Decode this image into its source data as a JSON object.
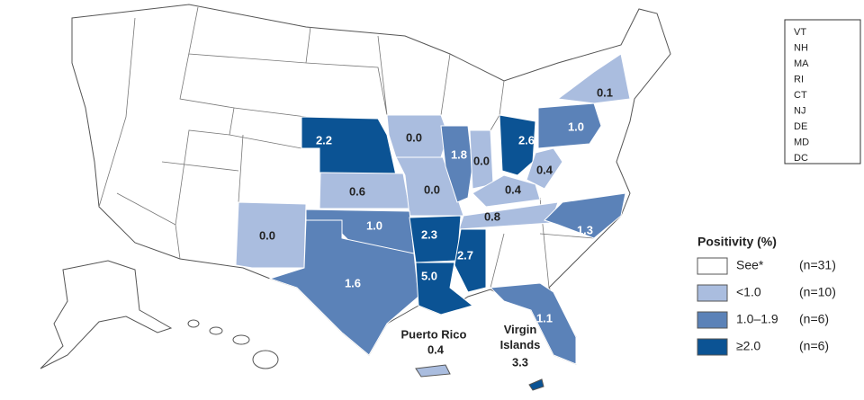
{
  "regions": [
    {
      "label": "2.2",
      "color": "#0b5394"
    },
    {
      "label": "0.0",
      "color": "#aabddf"
    },
    {
      "label": "0.6",
      "color": "#aabddf"
    },
    {
      "label": "0.0",
      "color": "#aabddf"
    },
    {
      "label": "1.8",
      "color": "#5b82b8"
    },
    {
      "label": "0.0",
      "color": "#aabddf"
    },
    {
      "label": "2.6",
      "color": "#0b5394"
    },
    {
      "label": "1.0",
      "color": "#5b82b8"
    },
    {
      "label": "0.1",
      "color": "#aabddf"
    },
    {
      "label": "0.4",
      "color": "#aabddf"
    },
    {
      "label": "0.4",
      "color": "#aabddf"
    },
    {
      "label": "0.8",
      "color": "#aabddf"
    },
    {
      "label": "1.3",
      "color": "#5b82b8"
    },
    {
      "label": "1.0",
      "color": "#5b82b8"
    },
    {
      "label": "0.0",
      "color": "#aabddf"
    },
    {
      "label": "1.6",
      "color": "#5b82b8"
    },
    {
      "label": "2.3",
      "color": "#0b5394"
    },
    {
      "label": "5.0",
      "color": "#0b5394"
    },
    {
      "label": "2.7",
      "color": "#0b5394"
    },
    {
      "label": "1.1",
      "color": "#5b82b8"
    }
  ],
  "territories": [
    {
      "name": "Puerto Rico",
      "label": "0.4",
      "color": "#aabddf"
    },
    {
      "name": "Virgin Islands",
      "label": "3.3",
      "color": "#0b5394"
    }
  ],
  "side_list": [
    "VT",
    "NH",
    "MA",
    "RI",
    "CT",
    "NJ",
    "DE",
    "MD",
    "DC"
  ],
  "legend": {
    "title": "Positivity (%)",
    "items": [
      {
        "label": "See*",
        "count": "(n=31)",
        "color": "#ffffff"
      },
      {
        "label": "<1.0",
        "count": "(n=10)",
        "color": "#aabddf"
      },
      {
        "label": "1.0–1.9",
        "count": "(n=6)",
        "color": "#5b82b8"
      },
      {
        "label": "≥2.0",
        "count": "(n=6)",
        "color": "#0b5394"
      }
    ]
  }
}
